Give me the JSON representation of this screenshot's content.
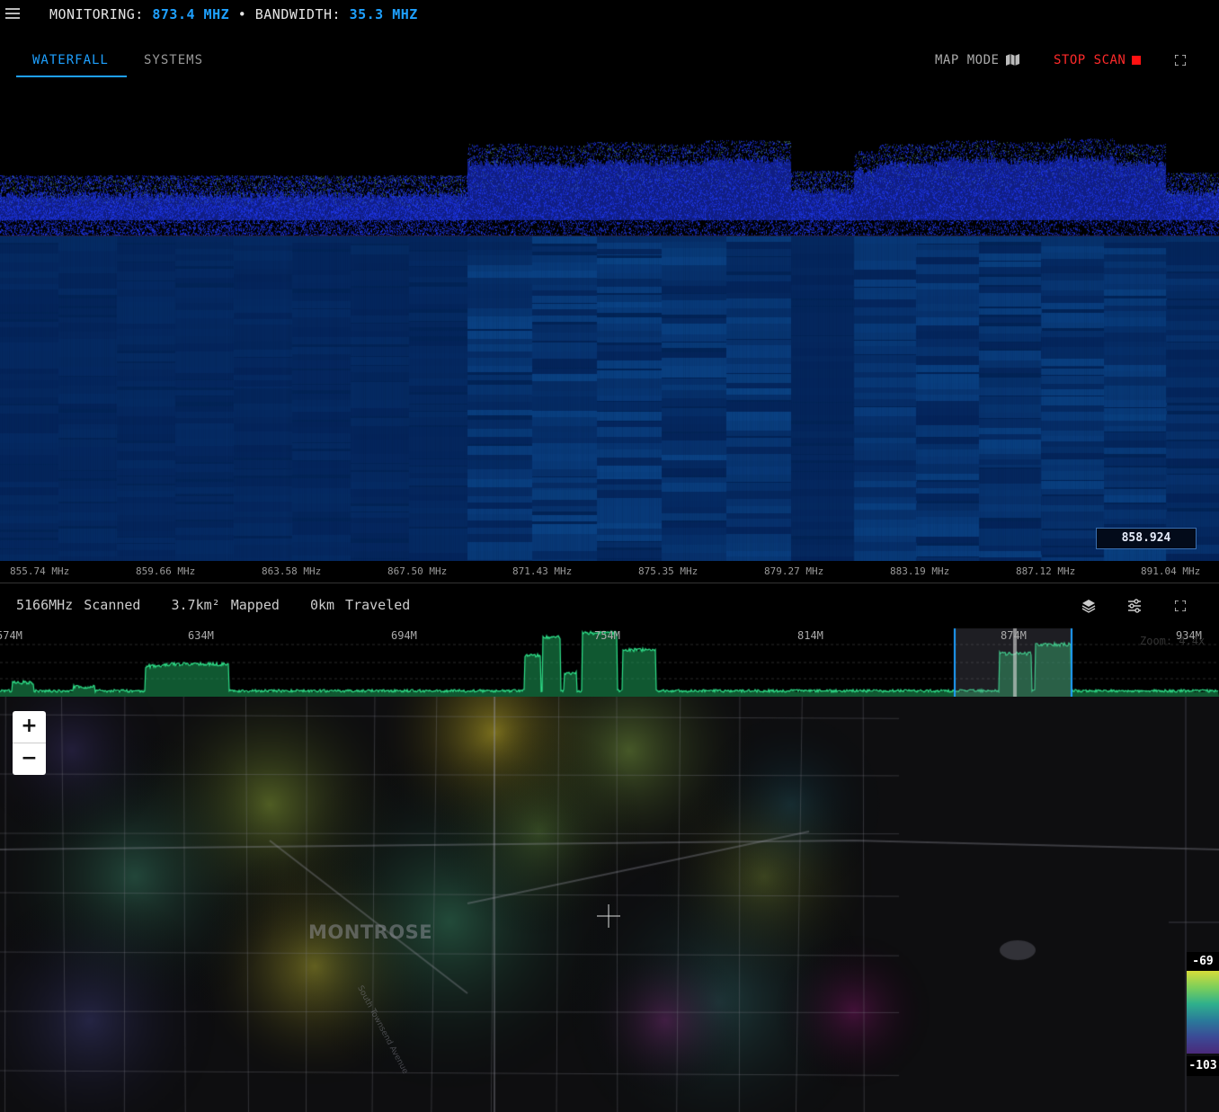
{
  "header": {
    "monitoring_label": "MONITORING:",
    "monitoring_value": "873.4 MHZ",
    "separator": "•",
    "bandwidth_label": "BANDWIDTH:",
    "bandwidth_value": "35.3 MHZ"
  },
  "tabs": [
    {
      "label": "WATERFALL",
      "active": true
    },
    {
      "label": "SYSTEMS",
      "active": false
    }
  ],
  "actions": {
    "map_mode_label": "MAP MODE",
    "stop_scan_label": "STOP SCAN"
  },
  "waterfall": {
    "cursor_readout": "858.924",
    "freq_ticks": [
      "855.74 MHz",
      "859.66 MHz",
      "863.58 MHz",
      "867.50 MHz",
      "871.43 MHz",
      "875.35 MHz",
      "879.27 MHz",
      "883.19 MHz",
      "887.12 MHz",
      "891.04 MHz"
    ]
  },
  "stats": {
    "scanned": "5166MHz Scanned",
    "mapped": "3.7km² Mapped",
    "traveled": "0km Traveled"
  },
  "overview": {
    "ticks": [
      "574M",
      "634M",
      "694M",
      "754M",
      "814M",
      "874M",
      "934M"
    ],
    "zoom_hint": "Zoom: 4.4x"
  },
  "map": {
    "place_label": "MONTROSE",
    "street_label": "South Townsend Avenue",
    "zoom_in_label": "+",
    "zoom_out_label": "−",
    "legend_max": "-69",
    "legend_min": "-103"
  },
  "colors": {
    "accent": "#1ea0ff",
    "stop": "#ff2a2a",
    "spectrum": "#2a4cff",
    "overview": "#2fe08a"
  }
}
